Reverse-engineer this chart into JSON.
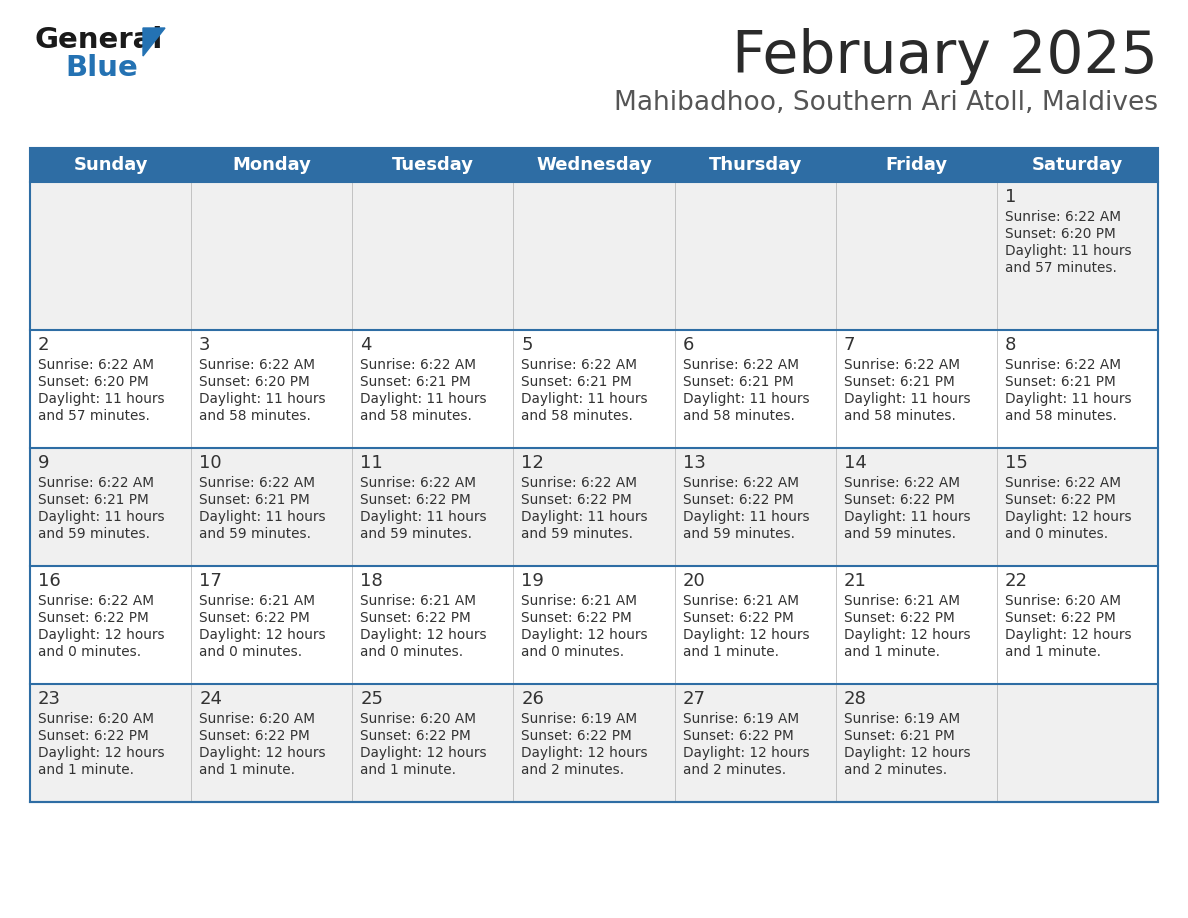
{
  "title": "February 2025",
  "subtitle": "Mahibadhoo, Southern Ari Atoll, Maldives",
  "header_bg": "#2E6DA4",
  "header_text_color": "#FFFFFF",
  "days_of_week": [
    "Sunday",
    "Monday",
    "Tuesday",
    "Wednesday",
    "Thursday",
    "Friday",
    "Saturday"
  ],
  "row_bg_odd": "#F0F0F0",
  "row_bg_even": "#FFFFFF",
  "divider_color": "#2E6DA4",
  "cell_text_color": "#333333",
  "day_num_color": "#333333",
  "title_color": "#2a2a2a",
  "subtitle_color": "#555555",
  "logo_general_color": "#1A1A1A",
  "logo_blue_color": "#2472B3",
  "calendar_data": [
    [
      null,
      null,
      null,
      null,
      null,
      null,
      {
        "day": 1,
        "sunrise": "6:22 AM",
        "sunset": "6:20 PM",
        "daylight": "11 hours and 57 minutes."
      }
    ],
    [
      {
        "day": 2,
        "sunrise": "6:22 AM",
        "sunset": "6:20 PM",
        "daylight": "11 hours and 57 minutes."
      },
      {
        "day": 3,
        "sunrise": "6:22 AM",
        "sunset": "6:20 PM",
        "daylight": "11 hours and 58 minutes."
      },
      {
        "day": 4,
        "sunrise": "6:22 AM",
        "sunset": "6:21 PM",
        "daylight": "11 hours and 58 minutes."
      },
      {
        "day": 5,
        "sunrise": "6:22 AM",
        "sunset": "6:21 PM",
        "daylight": "11 hours and 58 minutes."
      },
      {
        "day": 6,
        "sunrise": "6:22 AM",
        "sunset": "6:21 PM",
        "daylight": "11 hours and 58 minutes."
      },
      {
        "day": 7,
        "sunrise": "6:22 AM",
        "sunset": "6:21 PM",
        "daylight": "11 hours and 58 minutes."
      },
      {
        "day": 8,
        "sunrise": "6:22 AM",
        "sunset": "6:21 PM",
        "daylight": "11 hours and 58 minutes."
      }
    ],
    [
      {
        "day": 9,
        "sunrise": "6:22 AM",
        "sunset": "6:21 PM",
        "daylight": "11 hours and 59 minutes."
      },
      {
        "day": 10,
        "sunrise": "6:22 AM",
        "sunset": "6:21 PM",
        "daylight": "11 hours and 59 minutes."
      },
      {
        "day": 11,
        "sunrise": "6:22 AM",
        "sunset": "6:22 PM",
        "daylight": "11 hours and 59 minutes."
      },
      {
        "day": 12,
        "sunrise": "6:22 AM",
        "sunset": "6:22 PM",
        "daylight": "11 hours and 59 minutes."
      },
      {
        "day": 13,
        "sunrise": "6:22 AM",
        "sunset": "6:22 PM",
        "daylight": "11 hours and 59 minutes."
      },
      {
        "day": 14,
        "sunrise": "6:22 AM",
        "sunset": "6:22 PM",
        "daylight": "11 hours and 59 minutes."
      },
      {
        "day": 15,
        "sunrise": "6:22 AM",
        "sunset": "6:22 PM",
        "daylight": "12 hours and 0 minutes."
      }
    ],
    [
      {
        "day": 16,
        "sunrise": "6:22 AM",
        "sunset": "6:22 PM",
        "daylight": "12 hours and 0 minutes."
      },
      {
        "day": 17,
        "sunrise": "6:21 AM",
        "sunset": "6:22 PM",
        "daylight": "12 hours and 0 minutes."
      },
      {
        "day": 18,
        "sunrise": "6:21 AM",
        "sunset": "6:22 PM",
        "daylight": "12 hours and 0 minutes."
      },
      {
        "day": 19,
        "sunrise": "6:21 AM",
        "sunset": "6:22 PM",
        "daylight": "12 hours and 0 minutes."
      },
      {
        "day": 20,
        "sunrise": "6:21 AM",
        "sunset": "6:22 PM",
        "daylight": "12 hours and 1 minute."
      },
      {
        "day": 21,
        "sunrise": "6:21 AM",
        "sunset": "6:22 PM",
        "daylight": "12 hours and 1 minute."
      },
      {
        "day": 22,
        "sunrise": "6:20 AM",
        "sunset": "6:22 PM",
        "daylight": "12 hours and 1 minute."
      }
    ],
    [
      {
        "day": 23,
        "sunrise": "6:20 AM",
        "sunset": "6:22 PM",
        "daylight": "12 hours and 1 minute."
      },
      {
        "day": 24,
        "sunrise": "6:20 AM",
        "sunset": "6:22 PM",
        "daylight": "12 hours and 1 minute."
      },
      {
        "day": 25,
        "sunrise": "6:20 AM",
        "sunset": "6:22 PM",
        "daylight": "12 hours and 1 minute."
      },
      {
        "day": 26,
        "sunrise": "6:19 AM",
        "sunset": "6:22 PM",
        "daylight": "12 hours and 2 minutes."
      },
      {
        "day": 27,
        "sunrise": "6:19 AM",
        "sunset": "6:22 PM",
        "daylight": "12 hours and 2 minutes."
      },
      {
        "day": 28,
        "sunrise": "6:19 AM",
        "sunset": "6:21 PM",
        "daylight": "12 hours and 2 minutes."
      },
      null
    ]
  ]
}
